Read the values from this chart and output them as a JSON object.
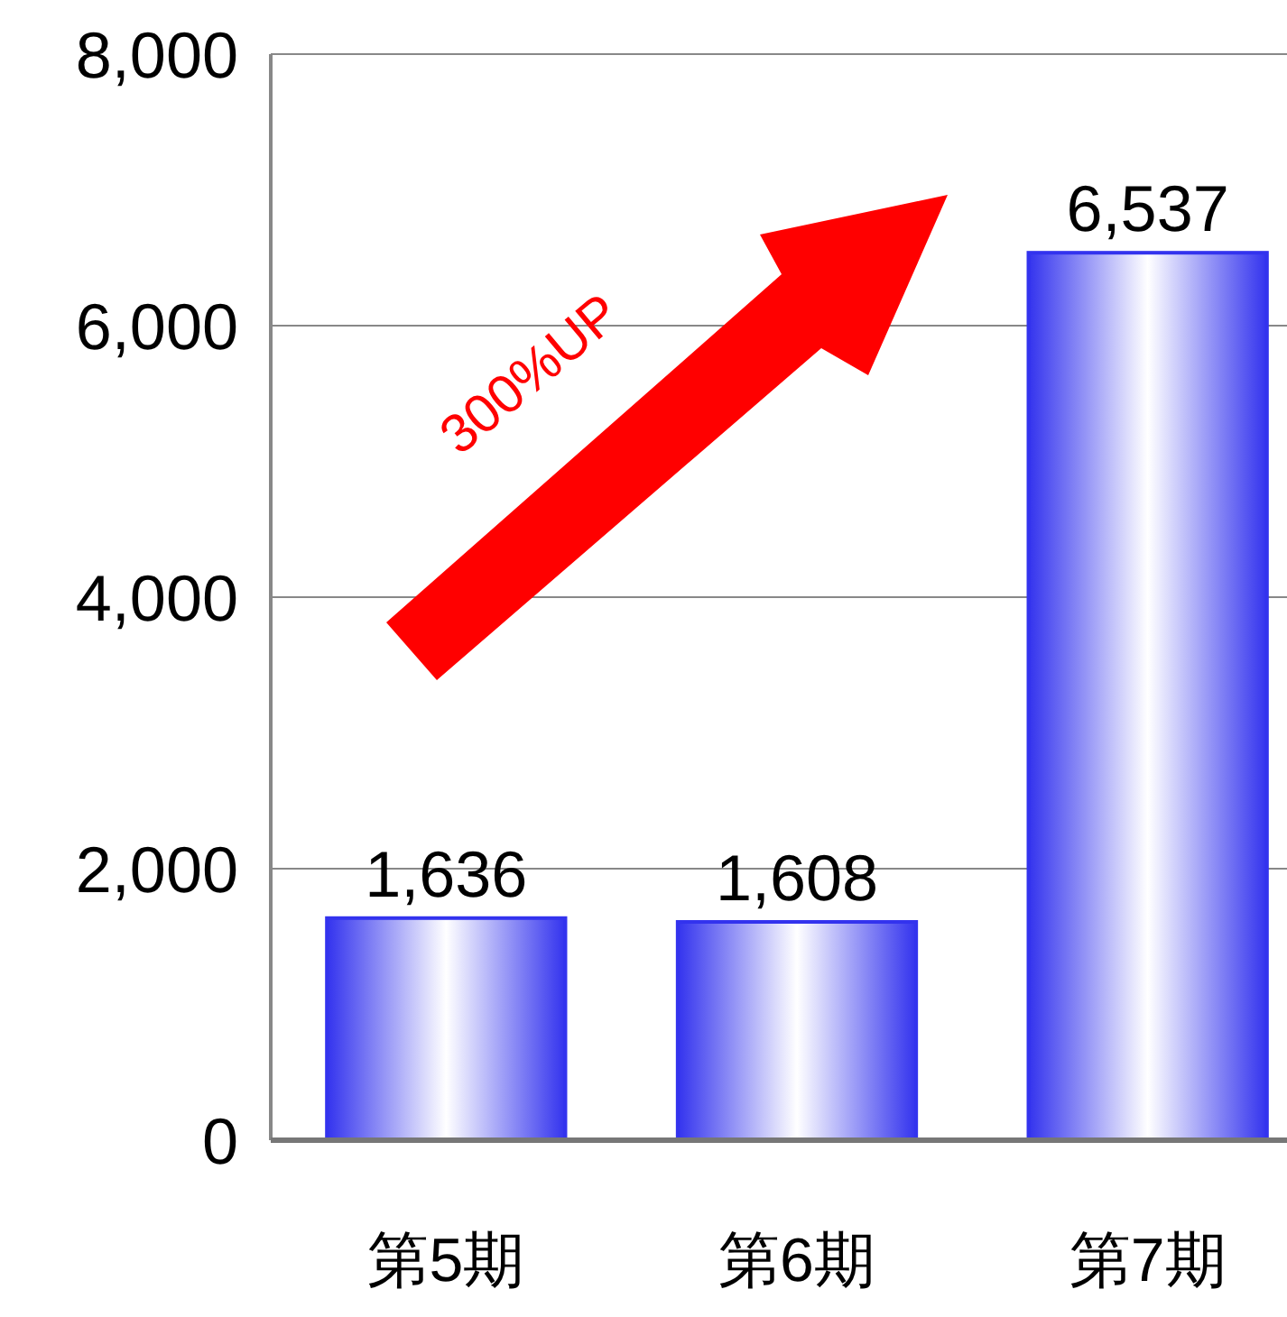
{
  "chart_data": {
    "type": "bar",
    "categories": [
      "第5期",
      "第6期",
      "第7期"
    ],
    "values": [
      1636,
      1608,
      6537
    ],
    "color": "#3333ee",
    "ylim": [
      0,
      8000
    ],
    "yticks": [
      {
        "value": 0,
        "label": "0"
      },
      {
        "value": 2000,
        "label": "2,000"
      },
      {
        "value": 4000,
        "label": "4,000"
      },
      {
        "value": 6000,
        "label": "6,000"
      },
      {
        "value": 8000,
        "label": "8,000"
      }
    ],
    "grid": "y",
    "value_labels": [
      "1,636",
      "1,608",
      "6,537"
    ],
    "annotations": [
      "300%UP"
    ]
  }
}
